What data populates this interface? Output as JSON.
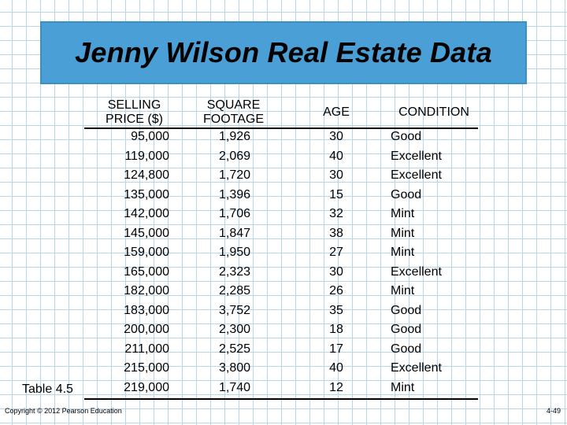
{
  "title": "Jenny Wilson Real Estate Data",
  "headers": {
    "price_line1": "SELLING",
    "price_line2": "PRICE ($)",
    "sqft_line1": "SQUARE",
    "sqft_line2": "FOOTAGE",
    "age": "AGE",
    "condition": "CONDITION"
  },
  "rows": [
    {
      "price": "95,000",
      "sqft": "1,926",
      "age": "30",
      "condition": "Good"
    },
    {
      "price": "119,000",
      "sqft": "2,069",
      "age": "40",
      "condition": "Excellent"
    },
    {
      "price": "124,800",
      "sqft": "1,720",
      "age": "30",
      "condition": "Excellent"
    },
    {
      "price": "135,000",
      "sqft": "1,396",
      "age": "15",
      "condition": "Good"
    },
    {
      "price": "142,000",
      "sqft": "1,706",
      "age": "32",
      "condition": "Mint"
    },
    {
      "price": "145,000",
      "sqft": "1,847",
      "age": "38",
      "condition": "Mint"
    },
    {
      "price": "159,000",
      "sqft": "1,950",
      "age": "27",
      "condition": "Mint"
    },
    {
      "price": "165,000",
      "sqft": "2,323",
      "age": "30",
      "condition": "Excellent"
    },
    {
      "price": "182,000",
      "sqft": "2,285",
      "age": "26",
      "condition": "Mint"
    },
    {
      "price": "183,000",
      "sqft": "3,752",
      "age": "35",
      "condition": "Good"
    },
    {
      "price": "200,000",
      "sqft": "2,300",
      "age": "18",
      "condition": "Good"
    },
    {
      "price": "211,000",
      "sqft": "2,525",
      "age": "17",
      "condition": "Good"
    },
    {
      "price": "215,000",
      "sqft": "3,800",
      "age": "40",
      "condition": "Excellent"
    },
    {
      "price": "219,000",
      "sqft": "1,740",
      "age": "12",
      "condition": "Mint"
    }
  ],
  "table_label": "Table 4.5",
  "copyright": "Copyright © 2012 Pearson Education",
  "page_number": "4-49",
  "colors": {
    "title_box": "#4a9fd6",
    "grid": "#b9d3e9"
  }
}
